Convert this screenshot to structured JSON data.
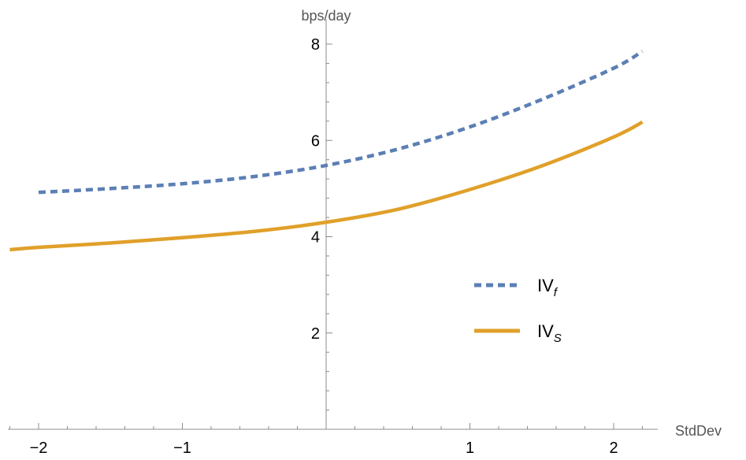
{
  "chart_data": {
    "type": "line",
    "title": "",
    "xlabel": "StdDev",
    "ylabel": "bps/day",
    "xlim": [
      -2.2,
      2.22
    ],
    "ylim": [
      0,
      8.3
    ],
    "x_ticks": [
      -2,
      -1,
      1,
      2
    ],
    "x_tick_labels": [
      "−2",
      "−1",
      "1",
      "2"
    ],
    "y_ticks": [
      2,
      4,
      6,
      8
    ],
    "y_tick_labels": [
      "2",
      "4",
      "6",
      "8"
    ],
    "grid": false,
    "legend_position": "right",
    "x": [
      -2.2,
      -2.0,
      -1.5,
      -1.0,
      -0.5,
      0.0,
      0.5,
      1.0,
      1.5,
      2.0,
      2.2
    ],
    "series": [
      {
        "name": "IV",
        "name_subscript": "f",
        "style": "dashed",
        "color": "#5b7fb5",
        "x_start": -2.0,
        "values": [
          null,
          4.92,
          5.0,
          5.1,
          5.25,
          5.48,
          5.82,
          6.28,
          6.85,
          7.5,
          7.85
        ]
      },
      {
        "name": "IV",
        "name_subscript": "S",
        "style": "solid",
        "color": "#e0a02a",
        "values": [
          3.73,
          3.78,
          3.87,
          3.98,
          4.11,
          4.3,
          4.57,
          4.98,
          5.47,
          6.07,
          6.38
        ]
      }
    ]
  }
}
